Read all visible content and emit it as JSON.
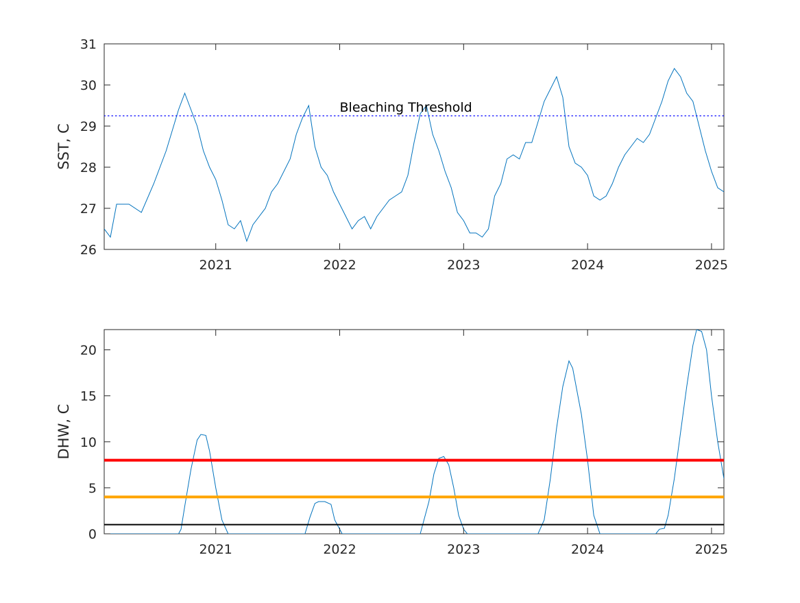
{
  "chart_data": [
    {
      "type": "line",
      "ylabel": "SST, C",
      "xlim": [
        2020.1,
        2025.1
      ],
      "ylim": [
        26,
        31
      ],
      "x_ticks": [
        2021,
        2022,
        2023,
        2024,
        2025
      ],
      "x_tick_labels": [
        "2021",
        "2022",
        "2023",
        "2024",
        "2025"
      ],
      "y_ticks": [
        26,
        27,
        28,
        29,
        30,
        31
      ],
      "y_tick_labels": [
        "26",
        "27",
        "28",
        "29",
        "30",
        "31"
      ],
      "grid": false,
      "box": true,
      "series": [
        {
          "style": "solid",
          "color": "#0072BD",
          "x": [
            2020.1,
            2020.15,
            2020.2,
            2020.3,
            2020.4,
            2020.5,
            2020.55,
            2020.6,
            2020.65,
            2020.7,
            2020.75,
            2020.8,
            2020.85,
            2020.9,
            2020.95,
            2021.0,
            2021.05,
            2021.1,
            2021.15,
            2021.2,
            2021.25,
            2021.3,
            2021.4,
            2021.45,
            2021.5,
            2021.6,
            2021.65,
            2021.7,
            2021.75,
            2021.8,
            2021.85,
            2021.9,
            2021.95,
            2022.0,
            2022.05,
            2022.1,
            2022.15,
            2022.2,
            2022.25,
            2022.3,
            2022.35,
            2022.4,
            2022.45,
            2022.5,
            2022.55,
            2022.6,
            2022.65,
            2022.7,
            2022.75,
            2022.8,
            2022.85,
            2022.9,
            2022.95,
            2023.0,
            2023.05,
            2023.1,
            2023.15,
            2023.2,
            2023.25,
            2023.3,
            2023.35,
            2023.4,
            2023.45,
            2023.5,
            2023.55,
            2023.6,
            2023.65,
            2023.7,
            2023.75,
            2023.8,
            2023.85,
            2023.9,
            2023.95,
            2024.0,
            2024.05,
            2024.1,
            2024.15,
            2024.2,
            2024.25,
            2024.3,
            2024.35,
            2024.4,
            2024.45,
            2024.5,
            2024.55,
            2024.6,
            2024.65,
            2024.7,
            2024.75,
            2024.8,
            2024.85,
            2024.9,
            2024.95,
            2025.0,
            2025.05,
            2025.1
          ],
          "y": [
            26.5,
            26.3,
            27.1,
            27.1,
            26.9,
            27.6,
            28.0,
            28.4,
            28.9,
            29.4,
            29.8,
            29.4,
            29.0,
            28.4,
            28.0,
            27.7,
            27.2,
            26.6,
            26.5,
            26.7,
            26.2,
            26.6,
            27.0,
            27.4,
            27.6,
            28.2,
            28.8,
            29.2,
            29.5,
            28.5,
            28.0,
            27.8,
            27.4,
            27.1,
            26.8,
            26.5,
            26.7,
            26.8,
            26.5,
            26.8,
            27.0,
            27.2,
            27.3,
            27.4,
            27.8,
            28.6,
            29.3,
            29.5,
            28.8,
            28.4,
            27.9,
            27.5,
            26.9,
            26.7,
            26.4,
            26.4,
            26.3,
            26.5,
            27.3,
            27.6,
            28.2,
            28.3,
            28.2,
            28.6,
            28.6,
            29.1,
            29.6,
            29.9,
            30.2,
            29.7,
            28.5,
            28.1,
            28.0,
            27.8,
            27.3,
            27.2,
            27.3,
            27.6,
            28.0,
            28.3,
            28.5,
            28.7,
            28.6,
            28.8,
            29.2,
            29.6,
            30.1,
            30.4,
            30.2,
            29.8,
            29.6,
            29.0,
            28.4,
            27.9,
            27.5,
            27.4
          ]
        },
        {
          "style": "dotted",
          "color": "#0000FF",
          "x": [
            2020.1,
            2025.1
          ],
          "y": [
            29.25,
            29.25
          ]
        }
      ],
      "annotations": [
        {
          "text": "Bleaching Threshold",
          "x": 2022.0,
          "y": 29.45
        }
      ]
    },
    {
      "type": "line",
      "ylabel": "DHW, C",
      "xlim": [
        2020.1,
        2025.1
      ],
      "ylim": [
        0,
        22.2
      ],
      "x_ticks": [
        2021,
        2022,
        2023,
        2024,
        2025
      ],
      "x_tick_labels": [
        "2021",
        "2022",
        "2023",
        "2024",
        "2025"
      ],
      "y_ticks": [
        0,
        5,
        10,
        15,
        20
      ],
      "y_tick_labels": [
        "0",
        "5",
        "10",
        "15",
        "20"
      ],
      "grid": false,
      "box": true,
      "series": [
        {
          "style": "solid",
          "color": "#0072BD",
          "x": [
            2020.1,
            2020.7,
            2020.72,
            2020.75,
            2020.8,
            2020.85,
            2020.88,
            2020.92,
            2020.95,
            2021.0,
            2021.05,
            2021.1,
            2021.72,
            2021.76,
            2021.8,
            2021.83,
            2021.88,
            2021.93,
            2021.96,
            2022.02,
            2022.05,
            2022.65,
            2022.68,
            2022.72,
            2022.76,
            2022.8,
            2022.84,
            2022.88,
            2022.92,
            2022.96,
            2023.0,
            2023.03,
            2023.6,
            2023.65,
            2023.7,
            2023.75,
            2023.8,
            2023.85,
            2023.88,
            2023.95,
            2024.0,
            2024.05,
            2024.1,
            2024.55,
            2024.58,
            2024.62,
            2024.65,
            2024.7,
            2024.75,
            2024.8,
            2024.85,
            2024.88,
            2024.92,
            2024.96,
            2025.0,
            2025.05,
            2025.1
          ],
          "y": [
            0,
            0,
            0.5,
            3,
            7,
            10.2,
            10.8,
            10.7,
            9,
            5,
            1.5,
            0,
            0,
            1.8,
            3.3,
            3.5,
            3.5,
            3.2,
            1.5,
            0,
            0,
            0,
            1.5,
            3.5,
            6.5,
            8.2,
            8.4,
            7.5,
            5,
            2,
            0.5,
            0,
            0,
            1.5,
            6,
            11.5,
            16,
            18.8,
            18,
            13,
            8,
            2,
            0,
            0,
            0.5,
            0.6,
            2,
            6,
            11,
            16,
            20.5,
            22.2,
            22,
            20,
            15,
            10,
            6
          ]
        },
        {
          "style": "solid",
          "color": "#FF0000",
          "x": [
            2020.1,
            2025.1
          ],
          "y": [
            8,
            8
          ]
        },
        {
          "style": "solid",
          "color": "#FFA500",
          "x": [
            2020.1,
            2025.1
          ],
          "y": [
            4,
            4
          ]
        },
        {
          "style": "solid",
          "color": "#000000",
          "x": [
            2020.1,
            2025.1
          ],
          "y": [
            1,
            1
          ]
        }
      ],
      "annotations": []
    }
  ]
}
